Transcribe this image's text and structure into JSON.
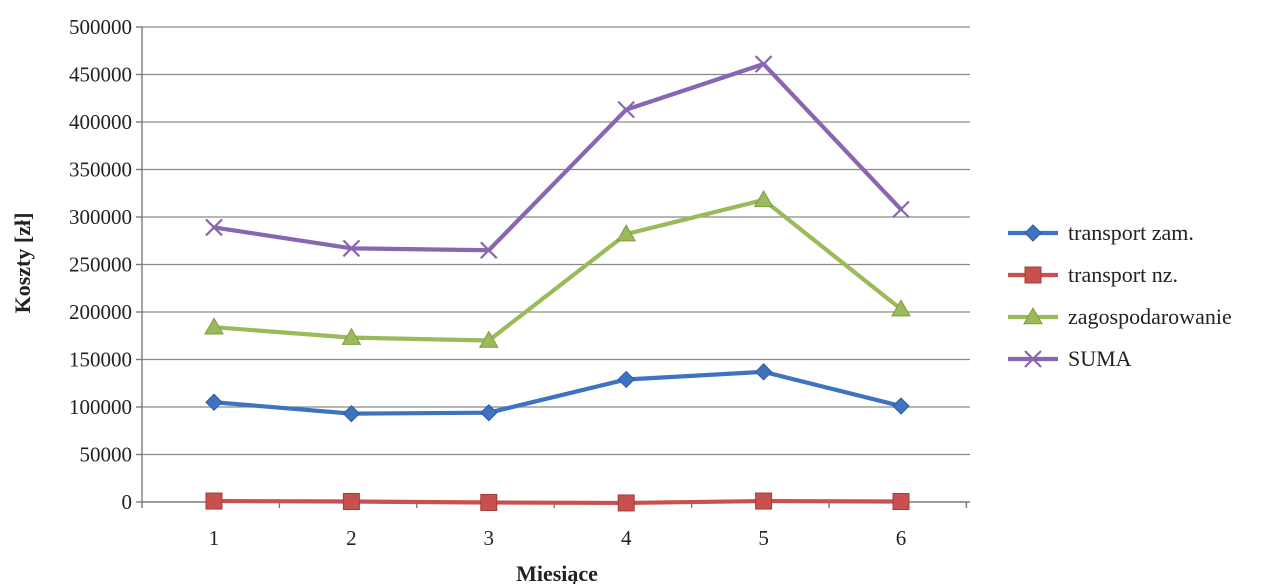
{
  "chart_data": {
    "type": "line",
    "xlabel": "Miesiące",
    "ylabel": "Koszty [zł]",
    "categories": [
      "1",
      "2",
      "3",
      "4",
      "5",
      "6"
    ],
    "ylim": [
      0,
      500000
    ],
    "yticks": [
      0,
      50000,
      100000,
      150000,
      200000,
      250000,
      300000,
      350000,
      400000,
      450000,
      500000
    ],
    "grid": true,
    "legend_position": "right",
    "series": [
      {
        "name": "transport zam.",
        "color": "#3e73c0",
        "marker": "diamond",
        "values": [
          105000,
          93000,
          94000,
          129000,
          137000,
          101000
        ]
      },
      {
        "name": "transport nz.",
        "color": "#c8504e",
        "marker": "square",
        "values": [
          1000,
          500,
          -500,
          -1000,
          1000,
          500
        ]
      },
      {
        "name": "zagospodarowanie",
        "color": "#9bba59",
        "marker": "triangle",
        "values": [
          184000,
          173000,
          170000,
          282000,
          318000,
          203000
        ]
      },
      {
        "name": "SUMA",
        "color": "#8866b0",
        "marker": "x",
        "values": [
          289000,
          267000,
          265000,
          413000,
          461000,
          308000
        ]
      }
    ]
  }
}
